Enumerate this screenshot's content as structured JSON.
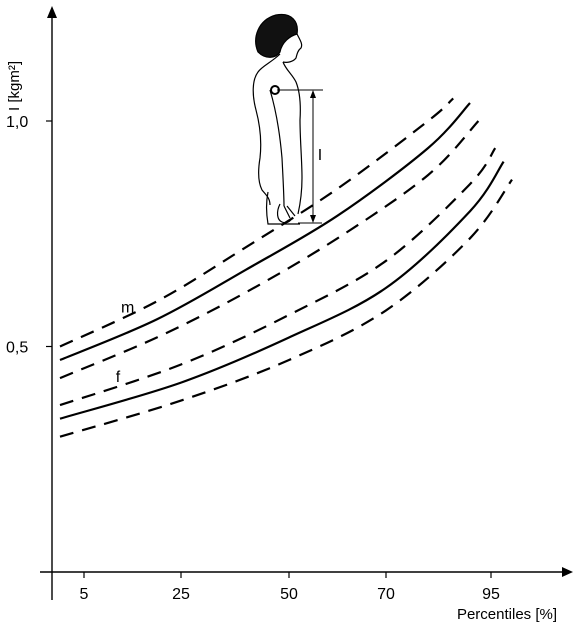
{
  "chart_data": {
    "type": "line",
    "title": "",
    "xlabel": "Percentiles [%]",
    "ylabel": "I [kgm²]",
    "x_ticks": [
      {
        "value": 5,
        "label": "5"
      },
      {
        "value": 25,
        "label": "25"
      },
      {
        "value": 50,
        "label": "50"
      },
      {
        "value": 70,
        "label": "70"
      },
      {
        "value": 95,
        "label": "95"
      }
    ],
    "y_ticks": [
      {
        "value": 0.5,
        "label": "0,5"
      },
      {
        "value": 1.0,
        "label": "1,0"
      }
    ],
    "annotations": [
      {
        "text": "m",
        "series": "m"
      },
      {
        "text": "f",
        "series": "f"
      },
      {
        "text": "I",
        "target": "illustration-dimension"
      }
    ],
    "illustration": "upper-body-side-profile-icon",
    "series": [
      {
        "name": "m",
        "style": "solid",
        "x": [
          1,
          20,
          40,
          60,
          80,
          90
        ],
        "y": [
          0.47,
          0.56,
          0.67,
          0.79,
          0.94,
          1.04
        ]
      },
      {
        "group": "m",
        "style": "dashed",
        "x": [
          1,
          20,
          40,
          60,
          80,
          86
        ],
        "y": [
          0.5,
          0.6,
          0.72,
          0.85,
          1.0,
          1.05
        ]
      },
      {
        "group": "m",
        "style": "dashed",
        "x": [
          1,
          20,
          40,
          60,
          80,
          92
        ],
        "y": [
          0.43,
          0.52,
          0.62,
          0.74,
          0.88,
          1.0
        ]
      },
      {
        "name": "f",
        "style": "solid",
        "x": [
          1,
          25,
          50,
          70,
          90,
          98
        ],
        "y": [
          0.34,
          0.42,
          0.52,
          0.63,
          0.8,
          0.91
        ]
      },
      {
        "group": "f",
        "style": "dashed",
        "x": [
          1,
          25,
          50,
          70,
          90,
          96
        ],
        "y": [
          0.37,
          0.46,
          0.57,
          0.69,
          0.86,
          0.94
        ]
      },
      {
        "group": "f",
        "style": "dashed",
        "x": [
          1,
          25,
          50,
          70,
          90,
          100
        ],
        "y": [
          0.3,
          0.38,
          0.47,
          0.58,
          0.74,
          0.87
        ]
      }
    ]
  }
}
